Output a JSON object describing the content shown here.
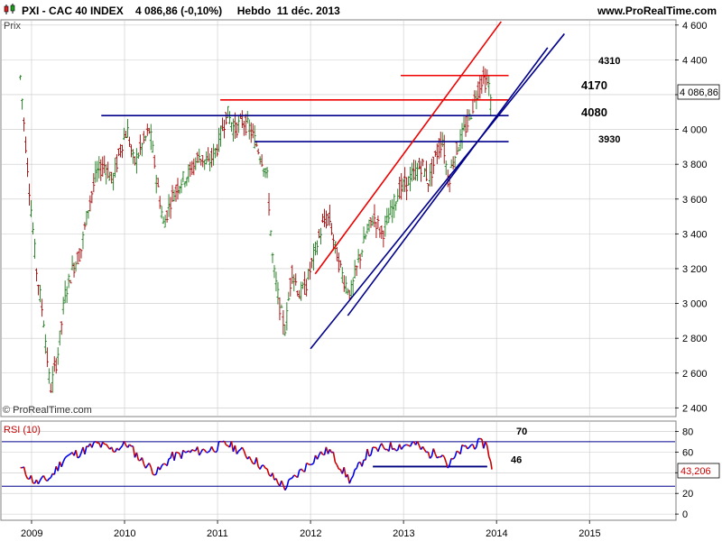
{
  "header": {
    "title": "PXI - CAC 40 INDEX    4 086,86 (-0,10%)     Hebdo  11 déc. 2013",
    "site": "www.ProRealTime.com",
    "logo_icon": "candlestick-logo-icon"
  },
  "price_panel": {
    "label": "Prix",
    "watermark": "© ProRealTime.com",
    "last_price_tag": "4 086,86",
    "annotations": [
      "4310",
      "4170",
      "4080",
      "3930"
    ]
  },
  "rsi_panel": {
    "label": "RSI (10)",
    "last_value_tag": "43,206",
    "annotations": [
      "70",
      "46"
    ]
  },
  "colors": {
    "grid": "#c8c8c8",
    "bull": "#1a7a1a",
    "bear": "#a00000",
    "support_line": "#00008b",
    "resistance_line": "#ee0000",
    "rsi_up": "#0000ee",
    "rsi_down": "#cc0000",
    "price_tag_bg": "#ffffff",
    "rsi_tag_text": "#cc0000"
  },
  "chart_data": [
    {
      "type": "candlestick",
      "title": "PXI - CAC 40 INDEX",
      "timeframe": "Hebdo",
      "x_tick_labels": [
        "2009",
        "2010",
        "2011",
        "2012",
        "2013",
        "2014",
        "2015"
      ],
      "y_tick_labels": [
        "4 600",
        "4 400",
        "4 200",
        "4 000",
        "3 800",
        "3 600",
        "3 400",
        "3 200",
        "3 000",
        "2 800",
        "2 600",
        "2 400"
      ],
      "ylim": [
        2350,
        4630
      ],
      "last_close": 4086.86,
      "price_path": [
        [
          2008.88,
          4300
        ],
        [
          2008.97,
          3700
        ],
        [
          2009.05,
          3200
        ],
        [
          2009.13,
          2900
        ],
        [
          2009.2,
          2500
        ],
        [
          2009.28,
          2700
        ],
        [
          2009.36,
          3050
        ],
        [
          2009.44,
          3200
        ],
        [
          2009.53,
          3300
        ],
        [
          2009.61,
          3550
        ],
        [
          2009.7,
          3750
        ],
        [
          2009.79,
          3800
        ],
        [
          2009.87,
          3700
        ],
        [
          2009.96,
          3900
        ],
        [
          2010.03,
          4000
        ],
        [
          2010.1,
          3800
        ],
        [
          2010.18,
          3900
        ],
        [
          2010.27,
          4000
        ],
        [
          2010.35,
          3700
        ],
        [
          2010.42,
          3450
        ],
        [
          2010.5,
          3600
        ],
        [
          2010.6,
          3700
        ],
        [
          2010.7,
          3750
        ],
        [
          2010.8,
          3850
        ],
        [
          2010.9,
          3800
        ],
        [
          2011.0,
          3900
        ],
        [
          2011.1,
          4100
        ],
        [
          2011.18,
          4000
        ],
        [
          2011.27,
          4050
        ],
        [
          2011.35,
          4000
        ],
        [
          2011.43,
          3900
        ],
        [
          2011.53,
          3750
        ],
        [
          2011.6,
          3200
        ],
        [
          2011.68,
          2950
        ],
        [
          2011.73,
          2850
        ],
        [
          2011.8,
          3200
        ],
        [
          2011.88,
          3050
        ],
        [
          2011.95,
          3100
        ],
        [
          2012.05,
          3300
        ],
        [
          2012.13,
          3450
        ],
        [
          2012.2,
          3500
        ],
        [
          2012.27,
          3300
        ],
        [
          2012.35,
          3150
        ],
        [
          2012.43,
          3050
        ],
        [
          2012.52,
          3250
        ],
        [
          2012.6,
          3400
        ],
        [
          2012.68,
          3500
        ],
        [
          2012.77,
          3400
        ],
        [
          2012.85,
          3500
        ],
        [
          2012.95,
          3650
        ],
        [
          2013.05,
          3700
        ],
        [
          2013.12,
          3750
        ],
        [
          2013.2,
          3800
        ],
        [
          2013.27,
          3700
        ],
        [
          2013.35,
          3850
        ],
        [
          2013.42,
          3950
        ],
        [
          2013.48,
          3700
        ],
        [
          2013.55,
          3850
        ],
        [
          2013.62,
          3950
        ],
        [
          2013.7,
          4050
        ],
        [
          2013.78,
          4200
        ],
        [
          2013.85,
          4300
        ],
        [
          2013.92,
          4250
        ],
        [
          2013.95,
          4087
        ]
      ],
      "price_levels": [
        {
          "label": "4310",
          "value": 4310,
          "from": 2012.97,
          "to": 2014.13,
          "color": "red"
        },
        {
          "label": "4170",
          "value": 4170,
          "from": 2011.03,
          "to": 2014.13,
          "color": "red"
        },
        {
          "label": "4080",
          "value": 4080,
          "from": 2009.75,
          "to": 2014.13,
          "color": "blue"
        },
        {
          "label": "3930",
          "value": 3930,
          "from": 2011.4,
          "to": 2014.13,
          "color": "blue"
        }
      ],
      "trend_lines": [
        {
          "color": "red",
          "from": [
            2012.05,
            3170
          ],
          "to": [
            2014.05,
            4620
          ]
        },
        {
          "color": "blue",
          "from": [
            2012.0,
            2740
          ],
          "to": [
            2014.73,
            4550
          ]
        },
        {
          "color": "blue",
          "from": [
            2012.4,
            2930
          ],
          "to": [
            2014.55,
            4470
          ]
        }
      ]
    },
    {
      "type": "line",
      "title": "RSI (10)",
      "y_tick_labels": [
        "80",
        "60",
        "40",
        "20",
        "0"
      ],
      "ylim": [
        -6,
        90
      ],
      "reference_levels": [
        {
          "label": "70",
          "value": 70
        },
        {
          "label": "",
          "value": 27
        }
      ],
      "support_segment": {
        "label": "46",
        "value": 46,
        "from": 2012.67,
        "to": 2013.9
      },
      "last_value": 43.206,
      "rsi_path": [
        [
          2008.88,
          45
        ],
        [
          2009.05,
          30
        ],
        [
          2009.2,
          35
        ],
        [
          2009.36,
          55
        ],
        [
          2009.53,
          60
        ],
        [
          2009.7,
          68
        ],
        [
          2009.87,
          62
        ],
        [
          2010.03,
          68
        ],
        [
          2010.18,
          52
        ],
        [
          2010.35,
          40
        ],
        [
          2010.5,
          55
        ],
        [
          2010.7,
          60
        ],
        [
          2010.9,
          62
        ],
        [
          2011.1,
          68
        ],
        [
          2011.27,
          60
        ],
        [
          2011.43,
          50
        ],
        [
          2011.6,
          35
        ],
        [
          2011.73,
          26
        ],
        [
          2011.88,
          40
        ],
        [
          2012.05,
          55
        ],
        [
          2012.2,
          62
        ],
        [
          2012.35,
          42
        ],
        [
          2012.43,
          32
        ],
        [
          2012.6,
          58
        ],
        [
          2012.77,
          64
        ],
        [
          2012.95,
          66
        ],
        [
          2013.12,
          68
        ],
        [
          2013.27,
          58
        ],
        [
          2013.42,
          60
        ],
        [
          2013.48,
          46
        ],
        [
          2013.62,
          62
        ],
        [
          2013.78,
          68
        ],
        [
          2013.9,
          68
        ],
        [
          2013.95,
          43
        ]
      ]
    }
  ]
}
